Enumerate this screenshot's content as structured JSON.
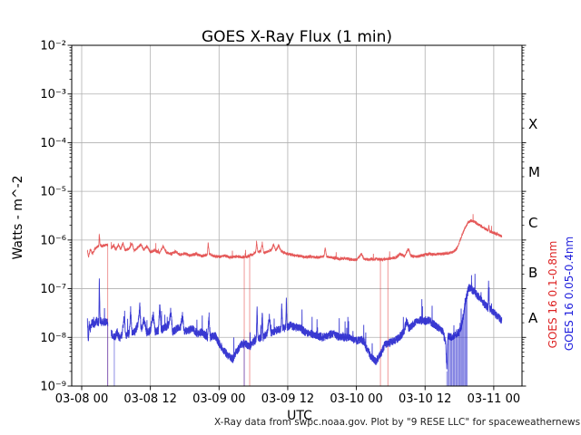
{
  "title": "GOES X-Ray Flux (1 min)",
  "axes": {
    "ylabel": "Watts - m^-2",
    "xlabel": "UTC"
  },
  "caption": "X-Ray data from swpc.noaa.gov. Plot by \"9 RESE LLC\" for spaceweathernews.com",
  "flare_scale": {
    "labels": [
      "X",
      "M",
      "C",
      "B",
      "A"
    ],
    "log_centers": [
      -3.5,
      -4.5,
      -5.5,
      -6.5,
      -7.5
    ]
  },
  "legend": {
    "long": {
      "text": "GOES 16 0.1-0.8nm",
      "color": "#dd2222"
    },
    "short": {
      "text": "GOES 16 0.05-0.4nm",
      "color": "#2222dd"
    }
  },
  "colors": {
    "grid": "#b0b0b0",
    "spine": "#000000",
    "background": "#ffffff"
  },
  "chart_data": {
    "type": "line",
    "title": "GOES X-Ray Flux (1 min)",
    "xlabel": "UTC",
    "ylabel": "Watts - m^-2",
    "yscale": "log",
    "ylim": [
      1e-09,
      0.01
    ],
    "xlim_hours": [
      -1.75,
      77.0
    ],
    "x_unit": "hours since 03-08 00:00 UTC",
    "grid": true,
    "x_ticks": [
      {
        "t": 0,
        "label": "03-08 00"
      },
      {
        "t": 12,
        "label": "03-08 12"
      },
      {
        "t": 24,
        "label": "03-09 00"
      },
      {
        "t": 36,
        "label": "03-09 12"
      },
      {
        "t": 48,
        "label": "03-10 00"
      },
      {
        "t": 60,
        "label": "03-10 12"
      },
      {
        "t": 72,
        "label": "03-11 00"
      }
    ],
    "y_ticks": [
      {
        "exp": -2,
        "label": "10⁻²"
      },
      {
        "exp": -3,
        "label": "10⁻³"
      },
      {
        "exp": -4,
        "label": "10⁻⁴"
      },
      {
        "exp": -5,
        "label": "10⁻⁵"
      },
      {
        "exp": -6,
        "label": "10⁻⁶"
      },
      {
        "exp": -7,
        "label": "10⁻⁷"
      },
      {
        "exp": -8,
        "label": "10⁻⁸"
      },
      {
        "exp": -9,
        "label": "10⁻⁹"
      }
    ],
    "series": [
      {
        "name": "GOES 16 0.1-0.8nm",
        "color": "#e03c3c",
        "linewidth": 0.8,
        "opacity": 0.85,
        "noise_log10": 0.03,
        "spike_prob": 0.003,
        "spike_amp": 0.15,
        "seed": 7,
        "gaps": [
          [
            4.55,
            5.15
          ]
        ],
        "dropouts": [
          4.55,
          28.4,
          29.35,
          52.2,
          53.5
        ],
        "points": [
          [
            1.0,
            6e-07
          ],
          [
            1.2,
            4.6e-07
          ],
          [
            1.5,
            6.4e-07
          ],
          [
            1.9,
            5.2e-07
          ],
          [
            2.3,
            6.6e-07
          ],
          [
            2.7,
            7.2e-07
          ],
          [
            3.0,
            7.6e-07
          ],
          [
            3.08,
            1.38e-06
          ],
          [
            3.2,
            8e-07
          ],
          [
            3.6,
            7.4e-07
          ],
          [
            4.0,
            7.8e-07
          ],
          [
            4.55,
            8e-07
          ],
          [
            5.15,
            6.8e-07
          ],
          [
            5.6,
            7.8e-07
          ],
          [
            6.0,
            6.2e-07
          ],
          [
            6.4,
            8.2e-07
          ],
          [
            6.8,
            6.4e-07
          ],
          [
            7.2,
            8.6e-07
          ],
          [
            7.6,
            6.2e-07
          ],
          [
            8.2,
            6.6e-07
          ],
          [
            8.8,
            8.4e-07
          ],
          [
            9.2,
            6e-07
          ],
          [
            9.8,
            7e-07
          ],
          [
            10.4,
            8.2e-07
          ],
          [
            10.8,
            6.2e-07
          ],
          [
            11.4,
            7.6e-07
          ],
          [
            12.0,
            5.6e-07
          ],
          [
            12.8,
            6.2e-07
          ],
          [
            13.6,
            5.4e-07
          ],
          [
            14.2,
            7.4e-07
          ],
          [
            14.8,
            5.6e-07
          ],
          [
            15.6,
            5.2e-07
          ],
          [
            16.4,
            5.8e-07
          ],
          [
            17.2,
            5e-07
          ],
          [
            18.0,
            5.3e-07
          ],
          [
            19.0,
            4.8e-07
          ],
          [
            20.0,
            5.2e-07
          ],
          [
            21.0,
            4.7e-07
          ],
          [
            21.95,
            5e-07
          ],
          [
            22.1,
            9e-07
          ],
          [
            22.3,
            5.2e-07
          ],
          [
            23.0,
            4.7e-07
          ],
          [
            24.0,
            4.5e-07
          ],
          [
            25.0,
            4.8e-07
          ],
          [
            26.0,
            4.4e-07
          ],
          [
            27.0,
            4.6e-07
          ],
          [
            28.0,
            4.4e-07
          ],
          [
            29.0,
            4.6e-07
          ],
          [
            29.8,
            5e-07
          ],
          [
            30.4,
            5.6e-07
          ],
          [
            30.55,
            9.2e-07
          ],
          [
            30.8,
            5.6e-07
          ],
          [
            31.3,
            6e-07
          ],
          [
            31.55,
            8.8e-07
          ],
          [
            31.8,
            5.4e-07
          ],
          [
            32.5,
            5.8e-07
          ],
          [
            33.2,
            6.4e-07
          ],
          [
            33.55,
            8.2e-07
          ],
          [
            33.9,
            6e-07
          ],
          [
            34.4,
            7.8e-07
          ],
          [
            34.9,
            5.8e-07
          ],
          [
            36.0,
            5.2e-07
          ],
          [
            37.0,
            4.9e-07
          ],
          [
            38.0,
            4.7e-07
          ],
          [
            39.0,
            4.5e-07
          ],
          [
            40.0,
            4.6e-07
          ],
          [
            41.0,
            4.4e-07
          ],
          [
            42.3,
            4.6e-07
          ],
          [
            42.55,
            6.8e-07
          ],
          [
            42.8,
            4.6e-07
          ],
          [
            44.0,
            4.3e-07
          ],
          [
            45.0,
            4.1e-07
          ],
          [
            46.0,
            4.2e-07
          ],
          [
            47.0,
            4e-07
          ],
          [
            48.0,
            3.9e-07
          ],
          [
            48.9,
            5.2e-07
          ],
          [
            49.3,
            4.1e-07
          ],
          [
            50.0,
            4e-07
          ],
          [
            51.0,
            4.1e-07
          ],
          [
            52.0,
            4e-07
          ],
          [
            53.0,
            4e-07
          ],
          [
            54.0,
            4.2e-07
          ],
          [
            55.0,
            4.4e-07
          ],
          [
            55.6,
            5.2e-07
          ],
          [
            56.4,
            4.6e-07
          ],
          [
            57.1,
            6.6e-07
          ],
          [
            57.5,
            4.8e-07
          ],
          [
            58.2,
            4.5e-07
          ],
          [
            59.0,
            4.7e-07
          ],
          [
            60.0,
            5e-07
          ],
          [
            60.8,
            5.2e-07
          ],
          [
            61.6,
            5e-07
          ],
          [
            62.4,
            5.2e-07
          ],
          [
            63.2,
            5.2e-07
          ],
          [
            64.0,
            5.4e-07
          ],
          [
            64.8,
            5.6e-07
          ],
          [
            65.5,
            6.5e-07
          ],
          [
            66.2,
            1.05e-06
          ],
          [
            66.9,
            1.7e-06
          ],
          [
            67.5,
            2.25e-06
          ],
          [
            68.0,
            2.5e-06
          ],
          [
            68.6,
            2.4e-06
          ],
          [
            69.3,
            2.1e-06
          ],
          [
            70.0,
            1.85e-06
          ],
          [
            70.7,
            1.65e-06
          ],
          [
            71.05,
            1.55e-06
          ],
          [
            71.15,
            2e-06
          ],
          [
            71.3,
            1.5e-06
          ],
          [
            72.0,
            1.4e-06
          ],
          [
            72.7,
            1.3e-06
          ],
          [
            73.4,
            1.2e-06
          ]
        ]
      },
      {
        "name": "GOES 16 0.05-0.4nm",
        "color": "#2323cd",
        "linewidth": 0.9,
        "opacity": 0.9,
        "noise_log10": 0.085,
        "spike_prob": 0.012,
        "spike_amp": 0.4,
        "seed": 13,
        "gaps": [
          [
            4.55,
            5.15
          ]
        ],
        "dropouts": [
          4.55,
          5.7,
          28.4,
          63.8,
          64.0,
          64.2,
          64.4,
          64.55,
          64.7,
          64.9,
          65.05,
          65.2,
          65.4,
          65.55,
          65.7,
          65.9,
          66.05,
          66.2,
          66.4,
          66.55,
          66.7,
          66.9,
          67.05,
          67.2,
          67.35
        ],
        "points": [
          [
            1.0,
            2.4e-08
          ],
          [
            1.15,
            8e-09
          ],
          [
            1.3,
            2e-08
          ],
          [
            1.5,
            1.4e-08
          ],
          [
            1.8,
            2.1e-08
          ],
          [
            2.2,
            1.8e-08
          ],
          [
            2.6,
            2.2e-08
          ],
          [
            3.0,
            2e-08
          ],
          [
            3.08,
            1.6e-07
          ],
          [
            3.2,
            2.2e-08
          ],
          [
            3.6,
            2e-08
          ],
          [
            4.0,
            2.1e-08
          ],
          [
            4.55,
            2e-08
          ],
          [
            5.15,
            1.2e-08
          ],
          [
            5.8,
            1e-08
          ],
          [
            6.2,
            1.3e-08
          ],
          [
            6.6,
            9.5e-09
          ],
          [
            7.0,
            1.1e-08
          ],
          [
            7.45,
            2.6e-08
          ],
          [
            7.7,
            1.1e-08
          ],
          [
            8.3,
            1.2e-08
          ],
          [
            8.55,
            3.6e-08
          ],
          [
            8.8,
            1.2e-08
          ],
          [
            9.3,
            1.3e-08
          ],
          [
            9.9,
            2e-08
          ],
          [
            10.15,
            4.6e-08
          ],
          [
            10.4,
            1.3e-08
          ],
          [
            10.9,
            2.4e-08
          ],
          [
            11.4,
            1.2e-08
          ],
          [
            12.0,
            1.4e-08
          ],
          [
            12.5,
            3e-08
          ],
          [
            12.8,
            1.3e-08
          ],
          [
            13.4,
            1.4e-08
          ],
          [
            13.65,
            4.6e-08
          ],
          [
            13.9,
            1.4e-08
          ],
          [
            14.5,
            1.6e-08
          ],
          [
            15.2,
            1.8e-08
          ],
          [
            15.55,
            3.4e-08
          ],
          [
            15.9,
            1.3e-08
          ],
          [
            16.6,
            1.5e-08
          ],
          [
            17.3,
            1.7e-08
          ],
          [
            17.6,
            2.8e-08
          ],
          [
            17.9,
            1.3e-08
          ],
          [
            18.6,
            1.4e-08
          ],
          [
            19.4,
            1.5e-08
          ],
          [
            20.2,
            1.2e-08
          ],
          [
            21.0,
            1.3e-08
          ],
          [
            22.0,
            1e-08
          ],
          [
            22.2,
            2.4e-08
          ],
          [
            22.5,
            1e-08
          ],
          [
            23.3,
            1.1e-08
          ],
          [
            24.0,
            7.5e-09
          ],
          [
            24.8,
            5.5e-09
          ],
          [
            25.6,
            4.2e-09
          ],
          [
            26.4,
            3.6e-09
          ],
          [
            27.0,
            5e-09
          ],
          [
            27.8,
            7e-09
          ],
          [
            28.6,
            7.5e-09
          ],
          [
            29.4,
            6.5e-09
          ],
          [
            30.0,
            8e-09
          ],
          [
            30.5,
            9e-09
          ],
          [
            30.65,
            4.2e-08
          ],
          [
            30.8,
            9.5e-09
          ],
          [
            31.4,
            1e-08
          ],
          [
            31.55,
            3.6e-08
          ],
          [
            31.7,
            1e-08
          ],
          [
            32.4,
            1.2e-08
          ],
          [
            32.8,
            2.6e-08
          ],
          [
            33.1,
            1.2e-08
          ],
          [
            34.0,
            1.4e-08
          ],
          [
            34.85,
            1.5e-08
          ],
          [
            34.95,
            5.5e-08
          ],
          [
            35.1,
            1.5e-08
          ],
          [
            35.65,
            1.6e-08
          ],
          [
            35.75,
            6e-08
          ],
          [
            35.9,
            1.6e-08
          ],
          [
            36.5,
            1.8e-08
          ],
          [
            37.2,
            1.6e-08
          ],
          [
            38.0,
            1.6e-08
          ],
          [
            39.0,
            1.3e-08
          ],
          [
            40.0,
            1.2e-08
          ],
          [
            41.0,
            1.1e-08
          ],
          [
            42.0,
            1e-08
          ],
          [
            43.0,
            1.1e-08
          ],
          [
            44.0,
            1.2e-08
          ],
          [
            45.0,
            1e-08
          ],
          [
            46.0,
            1e-08
          ],
          [
            47.0,
            9.5e-09
          ],
          [
            48.0,
            8.5e-09
          ],
          [
            49.0,
            9e-09
          ],
          [
            49.8,
            6e-09
          ],
          [
            50.6,
            4e-09
          ],
          [
            51.4,
            3.2e-09
          ],
          [
            52.2,
            4.5e-09
          ],
          [
            53.0,
            7e-09
          ],
          [
            54.0,
            8e-09
          ],
          [
            55.0,
            9e-09
          ],
          [
            55.8,
            1.1e-08
          ],
          [
            56.3,
            1.3e-08
          ],
          [
            56.75,
            2.2e-08
          ],
          [
            57.2,
            1.5e-08
          ],
          [
            58.0,
            1.9e-08
          ],
          [
            59.0,
            2.3e-08
          ],
          [
            59.8,
            2.1e-08
          ],
          [
            60.6,
            2.3e-08
          ],
          [
            61.4,
            1.9e-08
          ],
          [
            62.2,
            1.6e-08
          ],
          [
            63.0,
            1.4e-08
          ],
          [
            63.6,
            8e-09
          ],
          [
            63.8,
            2e-09
          ],
          [
            64.0,
            1.1e-08
          ],
          [
            64.5,
            1e-08
          ],
          [
            65.0,
            1.1e-08
          ],
          [
            65.5,
            1.2e-08
          ],
          [
            66.0,
            1.3e-08
          ],
          [
            66.5,
            2e-08
          ],
          [
            67.0,
            5.5e-08
          ],
          [
            67.7,
            1.05e-07
          ],
          [
            68.1,
            9.8e-08
          ],
          [
            68.6,
            8.8e-08
          ],
          [
            69.2,
            7.2e-08
          ],
          [
            69.8,
            5.8e-08
          ],
          [
            70.4,
            4.8e-08
          ],
          [
            71.0,
            4e-08
          ],
          [
            71.1,
            1.3e-07
          ],
          [
            71.25,
            3.9e-08
          ],
          [
            72.0,
            3.2e-08
          ],
          [
            72.7,
            2.7e-08
          ],
          [
            73.4,
            2.2e-08
          ]
        ]
      }
    ]
  }
}
